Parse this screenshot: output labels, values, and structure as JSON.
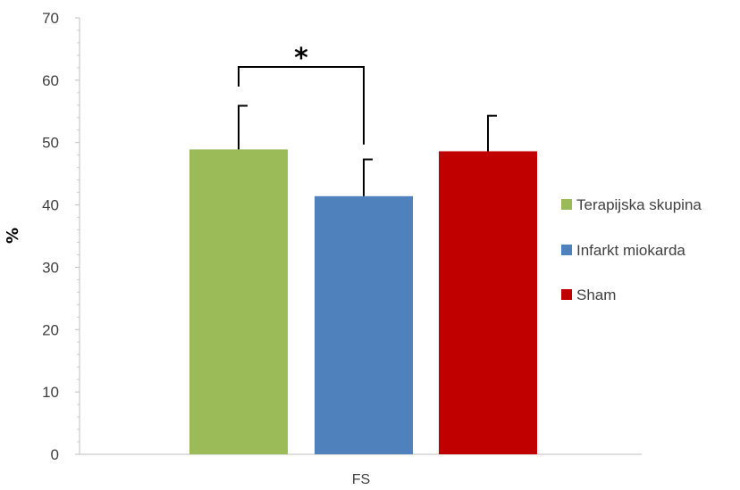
{
  "chart_data": {
    "type": "bar",
    "title": "",
    "xlabel": "",
    "ylabel": "%",
    "categories": [
      "FS"
    ],
    "ylim": [
      0,
      70
    ],
    "yticks": [
      0,
      10,
      20,
      30,
      40,
      50,
      60,
      70
    ],
    "grid": false,
    "legend": "right",
    "series": [
      {
        "name": "Terapijska skupina",
        "values": [
          48.9
        ],
        "error": [
          7.0
        ],
        "color": "#9bbb59"
      },
      {
        "name": "Infarkt miokarda",
        "values": [
          41.4
        ],
        "error": [
          5.9
        ],
        "color": "#4f81bd"
      },
      {
        "name": "Sham",
        "values": [
          48.6
        ],
        "error": [
          5.7
        ],
        "color": "#c00000"
      }
    ],
    "annotations": [
      {
        "type": "significance",
        "text": "*",
        "between": [
          "Terapijska skupina",
          "Infarkt miokarda"
        ]
      }
    ]
  }
}
